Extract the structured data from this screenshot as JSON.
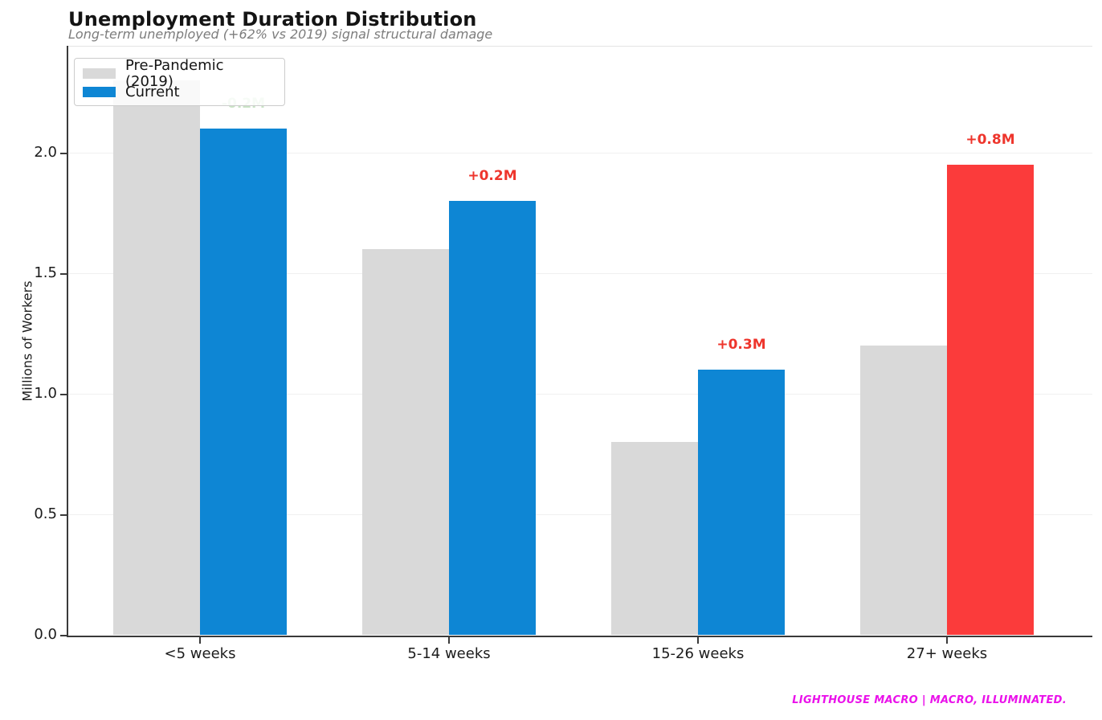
{
  "title": "Unemployment Duration Distribution",
  "subtitle": "Long-term unemployed (+62% vs 2019) signal structural damage",
  "footer": "LIGHTHOUSE MACRO | MACRO, ILLUMINATED.",
  "y_axis": {
    "label": "Millions of Workers"
  },
  "legend": {
    "items": [
      {
        "label": "Pre-Pandemic (2019)",
        "color": "#d9d9d9"
      },
      {
        "label": "Current",
        "color": "#0e86d4"
      }
    ]
  },
  "colors": {
    "pre_pandemic_gray": "#d9d9d9",
    "current_blue": "#0e86d4",
    "highlight_red": "#fb3b3b",
    "label_red": "#ee352c",
    "label_green": "#c9e3c5",
    "brand_magenta": "#ea12ea"
  },
  "chart_data": {
    "type": "bar",
    "title": "Unemployment Duration Distribution",
    "subtitle": "Long-term unemployed (+62% vs 2019) signal structural damage",
    "categories": [
      "<5 weeks",
      "5-14 weeks",
      "15-26 weeks",
      "27+ weeks"
    ],
    "series": [
      {
        "name": "Pre-Pandemic (2019)",
        "values": [
          2.3,
          1.6,
          0.8,
          1.2
        ],
        "bar_colors": [
          "#d9d9d9",
          "#d9d9d9",
          "#d9d9d9",
          "#d9d9d9"
        ]
      },
      {
        "name": "Current",
        "values": [
          2.1,
          1.8,
          1.1,
          1.95
        ],
        "bar_colors": [
          "#0e86d4",
          "#0e86d4",
          "#0e86d4",
          "#fb3b3b"
        ]
      }
    ],
    "annotations": [
      {
        "text": "-0.2M",
        "color": "#c9e3c5"
      },
      {
        "text": "+0.2M",
        "color": "#ee352c"
      },
      {
        "text": "+0.3M",
        "color": "#ee352c"
      },
      {
        "text": "+0.8M",
        "color": "#ee352c"
      }
    ],
    "xlabel": "",
    "ylabel": "Millions of Workers",
    "ylim": [
      0,
      2.44
    ],
    "yticks": [
      0.0,
      0.5,
      1.0,
      1.5,
      2.0
    ],
    "grid": true,
    "legend_position": "upper left"
  }
}
